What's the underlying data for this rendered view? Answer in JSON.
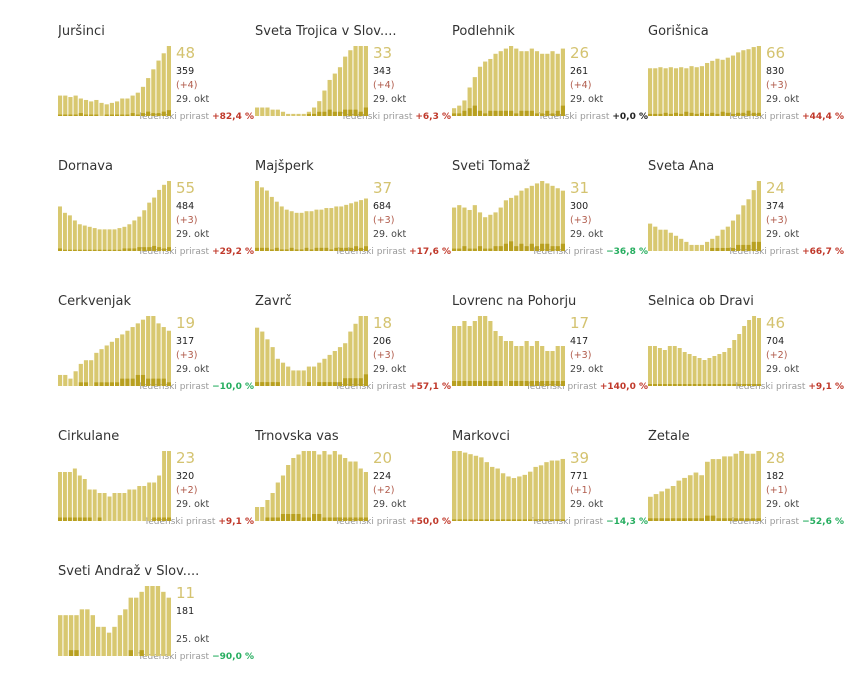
{
  "colors": {
    "bar_light": "#d8c870",
    "bar_dark": "#b8a020",
    "up": "#c0392b",
    "down": "#27ae60",
    "flat": "#222222"
  },
  "weekly_label": "Tedenski prirast",
  "chart_data": [
    {
      "type": "bar",
      "name": "Juršinci",
      "current": "48",
      "cumulative": "359",
      "delta": "(+4)",
      "date": "29. okt",
      "weekly_pct": "+82,4 %",
      "trend": "up",
      "values": [
        14,
        14,
        13,
        14,
        12,
        11,
        10,
        11,
        9,
        8,
        9,
        10,
        12,
        12,
        14,
        16,
        20,
        26,
        32,
        38,
        43,
        48
      ],
      "new": [
        1,
        1,
        1,
        1,
        2,
        1,
        1,
        1,
        0,
        1,
        1,
        1,
        1,
        1,
        2,
        1,
        2,
        3,
        2,
        2,
        3,
        4
      ]
    },
    {
      "type": "bar",
      "name": "Sveta Trojica v Slov....",
      "current": "33",
      "cumulative": "343",
      "delta": "(+4)",
      "date": "29. okt",
      "weekly_pct": "+6,3 %",
      "trend": "up",
      "values": [
        4,
        4,
        4,
        3,
        3,
        2,
        1,
        1,
        1,
        1,
        2,
        4,
        7,
        12,
        17,
        20,
        23,
        28,
        31,
        33,
        33,
        33
      ],
      "new": [
        0,
        0,
        0,
        0,
        0,
        0,
        0,
        0,
        0,
        0,
        1,
        1,
        2,
        2,
        3,
        2,
        2,
        3,
        3,
        3,
        2,
        4
      ]
    },
    {
      "type": "bar",
      "name": "Podlehnik",
      "current": "26",
      "cumulative": "261",
      "delta": "(+4)",
      "date": "29. okt",
      "weekly_pct": "+0,0 %",
      "trend": "flat",
      "values": [
        3,
        4,
        6,
        11,
        15,
        19,
        21,
        22,
        24,
        25,
        26,
        27,
        26,
        25,
        25,
        26,
        25,
        24,
        24,
        25,
        24,
        26
      ],
      "new": [
        1,
        1,
        2,
        3,
        4,
        2,
        1,
        2,
        2,
        2,
        2,
        2,
        1,
        2,
        2,
        2,
        1,
        1,
        2,
        1,
        2,
        4
      ]
    },
    {
      "type": "bar",
      "name": "Gorišnica",
      "current": "66",
      "cumulative": "830",
      "delta": "(+3)",
      "date": "29. okt",
      "weekly_pct": "+44,4 %",
      "trend": "up",
      "values": [
        45,
        45,
        46,
        45,
        46,
        45,
        46,
        45,
        47,
        46,
        47,
        50,
        52,
        54,
        53,
        55,
        57,
        60,
        62,
        63,
        65,
        66
      ],
      "new": [
        2,
        2,
        2,
        3,
        2,
        3,
        2,
        4,
        3,
        2,
        3,
        2,
        3,
        2,
        4,
        3,
        2,
        3,
        3,
        5,
        3,
        3
      ]
    },
    {
      "type": "bar",
      "name": "Dornava",
      "current": "55",
      "cumulative": "484",
      "delta": "(+3)",
      "date": "29. okt",
      "weekly_pct": "+29,2 %",
      "trend": "up",
      "values": [
        35,
        30,
        28,
        24,
        21,
        20,
        19,
        18,
        17,
        17,
        17,
        17,
        18,
        19,
        21,
        24,
        27,
        32,
        38,
        42,
        48,
        52,
        55
      ],
      "new": [
        2,
        1,
        1,
        1,
        1,
        1,
        1,
        1,
        1,
        1,
        1,
        1,
        1,
        2,
        2,
        2,
        3,
        3,
        3,
        4,
        3,
        2,
        3
      ]
    },
    {
      "type": "bar",
      "name": "Majšperk",
      "current": "37",
      "cumulative": "684",
      "delta": "(+3)",
      "date": "29. okt",
      "weekly_pct": "+17,6 %",
      "trend": "up",
      "values": [
        44,
        40,
        38,
        34,
        31,
        28,
        26,
        25,
        24,
        24,
        25,
        25,
        26,
        26,
        27,
        27,
        28,
        28,
        29,
        30,
        31,
        32,
        33
      ],
      "new": [
        2,
        2,
        2,
        1,
        2,
        1,
        1,
        2,
        1,
        1,
        2,
        1,
        2,
        2,
        2,
        1,
        2,
        2,
        2,
        2,
        3,
        2,
        3
      ]
    },
    {
      "type": "bar",
      "name": "Sveti Tomaž",
      "current": "31",
      "cumulative": "300",
      "delta": "(+3)",
      "date": "29. okt",
      "weekly_pct": "−36,8 %",
      "trend": "down",
      "values": [
        18,
        19,
        18,
        17,
        19,
        16,
        14,
        15,
        16,
        18,
        21,
        22,
        23,
        25,
        26,
        27,
        28,
        29,
        28,
        27,
        26,
        25
      ],
      "new": [
        1,
        1,
        2,
        1,
        1,
        2,
        1,
        1,
        2,
        2,
        3,
        4,
        2,
        3,
        2,
        3,
        2,
        3,
        3,
        2,
        2,
        3
      ]
    },
    {
      "type": "bar",
      "name": "Sveta Ana",
      "current": "24",
      "cumulative": "374",
      "delta": "(+3)",
      "date": "29. okt",
      "weekly_pct": "+66,7 %",
      "trend": "up",
      "values": [
        9,
        8,
        7,
        7,
        6,
        5,
        4,
        3,
        2,
        2,
        2,
        3,
        4,
        5,
        7,
        8,
        10,
        12,
        15,
        17,
        20,
        23
      ],
      "new": [
        0,
        0,
        0,
        0,
        0,
        0,
        0,
        0,
        0,
        0,
        0,
        0,
        1,
        1,
        1,
        1,
        1,
        2,
        2,
        2,
        3,
        3
      ]
    },
    {
      "type": "bar",
      "name": "Cerkvenjak",
      "current": "19",
      "cumulative": "317",
      "delta": "(+3)",
      "date": "29. okt",
      "weekly_pct": "−10,0 %",
      "trend": "down",
      "values": [
        3,
        3,
        2,
        4,
        6,
        7,
        7,
        9,
        10,
        11,
        12,
        13,
        14,
        15,
        16,
        17,
        18,
        19,
        19,
        17,
        16,
        15
      ],
      "new": [
        0,
        0,
        0,
        0,
        1,
        1,
        0,
        1,
        1,
        1,
        1,
        1,
        2,
        2,
        2,
        3,
        3,
        2,
        2,
        2,
        2,
        1
      ]
    },
    {
      "type": "bar",
      "name": "Zavrč",
      "current": "18",
      "cumulative": "206",
      "delta": "(+3)",
      "date": "29. okt",
      "weekly_pct": "+57,1 %",
      "trend": "up",
      "values": [
        15,
        14,
        12,
        10,
        7,
        6,
        5,
        4,
        4,
        4,
        5,
        5,
        6,
        7,
        8,
        9,
        10,
        11,
        14,
        16,
        18,
        18
      ],
      "new": [
        1,
        1,
        1,
        1,
        1,
        0,
        0,
        0,
        0,
        0,
        1,
        0,
        1,
        1,
        1,
        1,
        1,
        2,
        2,
        2,
        2,
        3
      ]
    },
    {
      "type": "bar",
      "name": "Lovrenc na Pohorju",
      "current": "17",
      "cumulative": "417",
      "delta": "(+3)",
      "date": "29. okt",
      "weekly_pct": "+140,0 %",
      "trend": "up",
      "values": [
        12,
        12,
        13,
        12,
        13,
        14,
        14,
        13,
        11,
        10,
        9,
        9,
        8,
        8,
        9,
        8,
        9,
        8,
        7,
        7,
        8,
        8
      ],
      "new": [
        1,
        1,
        1,
        1,
        1,
        1,
        1,
        1,
        1,
        1,
        0,
        1,
        1,
        1,
        1,
        1,
        1,
        1,
        1,
        1,
        1,
        1
      ]
    },
    {
      "type": "bar",
      "name": "Selnica ob Dravi",
      "current": "46",
      "cumulative": "704",
      "delta": "(+2)",
      "date": "29. okt",
      "weekly_pct": "+9,1 %",
      "trend": "up",
      "values": [
        20,
        20,
        19,
        18,
        20,
        20,
        19,
        17,
        16,
        15,
        14,
        13,
        14,
        15,
        16,
        17,
        19,
        23,
        26,
        30,
        33,
        35,
        34
      ],
      "new": [
        1,
        1,
        1,
        1,
        1,
        1,
        1,
        1,
        1,
        1,
        1,
        1,
        1,
        1,
        1,
        1,
        1,
        1,
        1,
        1,
        1,
        1,
        1
      ]
    },
    {
      "type": "bar",
      "name": "Cirkulane",
      "current": "23",
      "cumulative": "320",
      "delta": "(+2)",
      "date": "29. okt",
      "weekly_pct": "+9,1 %",
      "trend": "up",
      "values": [
        14,
        14,
        14,
        15,
        13,
        12,
        9,
        9,
        8,
        8,
        7,
        8,
        8,
        8,
        9,
        9,
        10,
        10,
        11,
        11,
        13,
        20,
        20
      ],
      "new": [
        1,
        1,
        1,
        1,
        1,
        1,
        1,
        0,
        1,
        0,
        0,
        0,
        0,
        0,
        0,
        0,
        0,
        0,
        0,
        1,
        1,
        1,
        1
      ]
    },
    {
      "type": "bar",
      "name": "Trnovska vas",
      "current": "20",
      "cumulative": "224",
      "delta": "(+2)",
      "date": "29. okt",
      "weekly_pct": "+50,0 %",
      "trend": "up",
      "values": [
        4,
        4,
        6,
        8,
        11,
        13,
        16,
        18,
        19,
        20,
        20,
        20,
        19,
        20,
        19,
        20,
        19,
        18,
        17,
        17,
        15,
        14
      ],
      "new": [
        0,
        0,
        1,
        1,
        1,
        2,
        2,
        2,
        2,
        1,
        1,
        2,
        2,
        1,
        1,
        1,
        1,
        1,
        1,
        1,
        1,
        1
      ]
    },
    {
      "type": "bar",
      "name": "Markovci",
      "current": "39",
      "cumulative": "771",
      "delta": "(+1)",
      "date": "29. okt",
      "weekly_pct": "−14,3 %",
      "trend": "down",
      "values": [
        44,
        44,
        43,
        42,
        41,
        40,
        37,
        34,
        33,
        30,
        28,
        27,
        28,
        29,
        31,
        34,
        35,
        37,
        38,
        38,
        39
      ],
      "new": [
        1,
        1,
        1,
        1,
        1,
        1,
        1,
        1,
        1,
        1,
        1,
        1,
        1,
        1,
        1,
        1,
        1,
        1,
        1,
        1,
        1
      ]
    },
    {
      "type": "bar",
      "name": "Žetale",
      "current": "28",
      "cumulative": "182",
      "delta": "(+1)",
      "date": "29. okt",
      "weekly_pct": "−52,6 %",
      "trend": "down",
      "values": [
        9,
        10,
        11,
        12,
        13,
        15,
        16,
        17,
        18,
        17,
        22,
        23,
        23,
        24,
        24,
        25,
        26,
        25,
        25,
        26
      ],
      "new": [
        1,
        1,
        1,
        1,
        1,
        1,
        1,
        1,
        1,
        1,
        2,
        2,
        1,
        1,
        1,
        1,
        1,
        1,
        1,
        1
      ]
    },
    {
      "type": "bar",
      "name": "Sveti Andraž v Slov....",
      "current": "11",
      "cumulative": "181",
      "delta": "",
      "date": "25. okt",
      "weekly_pct": "−90,0 %",
      "trend": "down",
      "values": [
        7,
        7,
        7,
        7,
        8,
        8,
        7,
        5,
        5,
        4,
        5,
        7,
        8,
        10,
        10,
        11,
        12,
        12,
        12,
        11,
        10
      ],
      "new": [
        0,
        0,
        1,
        1,
        0,
        0,
        0,
        0,
        0,
        0,
        0,
        0,
        0,
        1,
        0,
        1,
        0,
        0,
        0,
        0,
        0
      ]
    }
  ]
}
